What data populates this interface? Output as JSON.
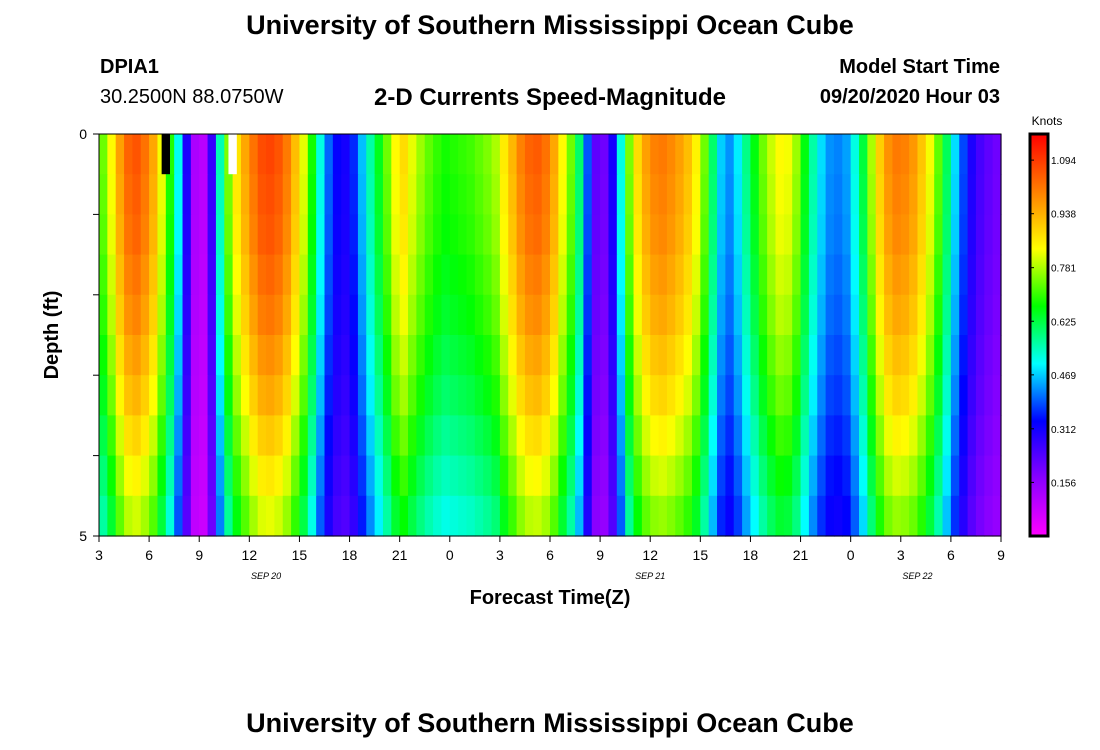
{
  "page": {
    "title_top": "University of Southern Mississippi Ocean Cube",
    "title_bottom": "University of Southern Mississippi Ocean Cube"
  },
  "header": {
    "station_id": "DPIA1",
    "station_location": "30.2500N 88.0750W",
    "plot_title": "2-D Currents Speed-Magnitude",
    "model_start_label": "Model Start Time",
    "model_start_value": "09/20/2020 Hour 03"
  },
  "colorbar": {
    "unit_label": "Knots",
    "min": 0.0,
    "max": 1.17,
    "tick_values": [
      0.156,
      0.312,
      0.469,
      0.625,
      0.781,
      0.938,
      1.094
    ],
    "tick_labels": [
      "0.156",
      "0.312",
      "0.469",
      "0.625",
      "0.781",
      "0.938",
      "1.094"
    ],
    "stops": [
      "#ff00ff",
      "#8a00ff",
      "#0000ff",
      "#00ffff",
      "#00ff00",
      "#ffff00",
      "#ff7f00",
      "#ff0000"
    ]
  },
  "chart_data": {
    "type": "heatmap",
    "title": "2-D Currents Speed-Magnitude",
    "xlabel": "Forecast Time(Z)",
    "ylabel": "Depth (ft)",
    "x_unit": "forecast hour from 09/20/2020 03Z",
    "x_range": [
      0,
      54
    ],
    "y_range": [
      0,
      5
    ],
    "y_tick_labels": [
      "0",
      "5"
    ],
    "y_ticks": [
      0,
      1,
      2,
      3,
      4,
      5
    ],
    "x_tick_hours": [
      0,
      3,
      6,
      9,
      12,
      15,
      18,
      21,
      24,
      27,
      30,
      33,
      36,
      39,
      42,
      45,
      48,
      51,
      54
    ],
    "x_tick_labels": [
      "3",
      "6",
      "9",
      "12",
      "15",
      "18",
      "21",
      "0",
      "3",
      "6",
      "9",
      "12",
      "15",
      "18",
      "21",
      "0",
      "3",
      "6",
      "9"
    ],
    "date_labels": [
      {
        "text": "SEP 20",
        "hour": 10
      },
      {
        "text": "SEP 21",
        "hour": 33
      },
      {
        "text": "SEP 22",
        "hour": 49
      }
    ],
    "depth_levels": [
      0.25,
      0.75,
      1.25,
      1.75,
      2.25,
      2.75,
      3.25,
      3.75,
      4.25,
      4.75
    ],
    "hours": [
      0.25,
      0.75,
      1.25,
      1.75,
      2.25,
      2.75,
      3.25,
      3.75,
      4.25,
      4.75,
      5.25,
      5.75,
      6.25,
      6.75,
      7.25,
      7.75,
      8.25,
      8.75,
      9.25,
      9.75,
      10.25,
      10.75,
      11.25,
      11.75,
      12.25,
      12.75,
      13.25,
      13.75,
      14.25,
      14.75,
      15.25,
      15.75,
      16.25,
      16.75,
      17.25,
      17.75,
      18.25,
      18.75,
      19.25,
      19.75,
      20.25,
      20.75,
      21.25,
      21.75,
      22.25,
      22.75,
      23.25,
      23.75,
      24.25,
      24.75,
      25.25,
      25.75,
      26.25,
      26.75,
      27.25,
      27.75,
      28.25,
      28.75,
      29.25,
      29.75,
      30.25,
      30.75,
      31.25,
      31.75,
      32.25,
      32.75,
      33.25,
      33.75,
      34.25,
      34.75,
      35.25,
      35.75,
      36.25,
      36.75,
      37.25,
      37.75,
      38.25,
      38.75,
      39.25,
      39.75,
      40.25,
      40.75,
      41.25,
      41.75,
      42.25,
      42.75,
      43.25,
      43.75,
      44.25,
      44.75,
      45.25,
      45.75,
      46.25,
      46.75,
      47.25,
      47.75,
      48.25,
      48.75,
      49.25,
      49.75,
      50.25,
      50.75,
      51.25,
      51.75,
      52.25,
      52.75,
      53.25,
      53.75
    ],
    "surface_speed_knots": [
      0.74,
      0.84,
      0.96,
      1.04,
      1.06,
      1.02,
      0.95,
      0.83,
      0.69,
      0.51,
      0.3,
      0.12,
      0.1,
      0.27,
      0.55,
      0.75,
      0.87,
      0.95,
      1.02,
      1.07,
      1.08,
      1.06,
      1.01,
      0.92,
      0.82,
      0.68,
      0.52,
      0.4,
      0.33,
      0.31,
      0.36,
      0.46,
      0.56,
      0.65,
      0.74,
      0.84,
      0.88,
      0.82,
      0.77,
      0.73,
      0.7,
      0.68,
      0.69,
      0.7,
      0.71,
      0.73,
      0.75,
      0.78,
      0.86,
      0.93,
      1.0,
      1.04,
      1.05,
      1.02,
      0.95,
      0.84,
      0.74,
      0.6,
      0.39,
      0.22,
      0.2,
      0.31,
      0.52,
      0.75,
      0.88,
      0.96,
      1.0,
      1.01,
      0.99,
      0.96,
      0.92,
      0.85,
      0.74,
      0.6,
      0.47,
      0.43,
      0.49,
      0.58,
      0.66,
      0.74,
      0.8,
      0.84,
      0.83,
      0.77,
      0.66,
      0.56,
      0.48,
      0.43,
      0.42,
      0.44,
      0.52,
      0.63,
      0.78,
      0.9,
      0.98,
      1.01,
      1.0,
      0.97,
      0.91,
      0.83,
      0.73,
      0.61,
      0.48,
      0.38,
      0.3,
      0.25,
      0.22,
      0.2
    ],
    "depth_factors": [
      1.0,
      0.99,
      0.98,
      0.96,
      0.94,
      0.91,
      0.88,
      0.84,
      0.8,
      0.76
    ],
    "masked_cells": [
      {
        "hour_start": 3.75,
        "hour_end": 4.25,
        "depth_start": 0.0,
        "depth_end": 0.5,
        "color": "#000000"
      },
      {
        "hour_start": 7.75,
        "hour_end": 8.25,
        "depth_start": 0.0,
        "depth_end": 0.5,
        "color": "#ffffff"
      }
    ]
  }
}
